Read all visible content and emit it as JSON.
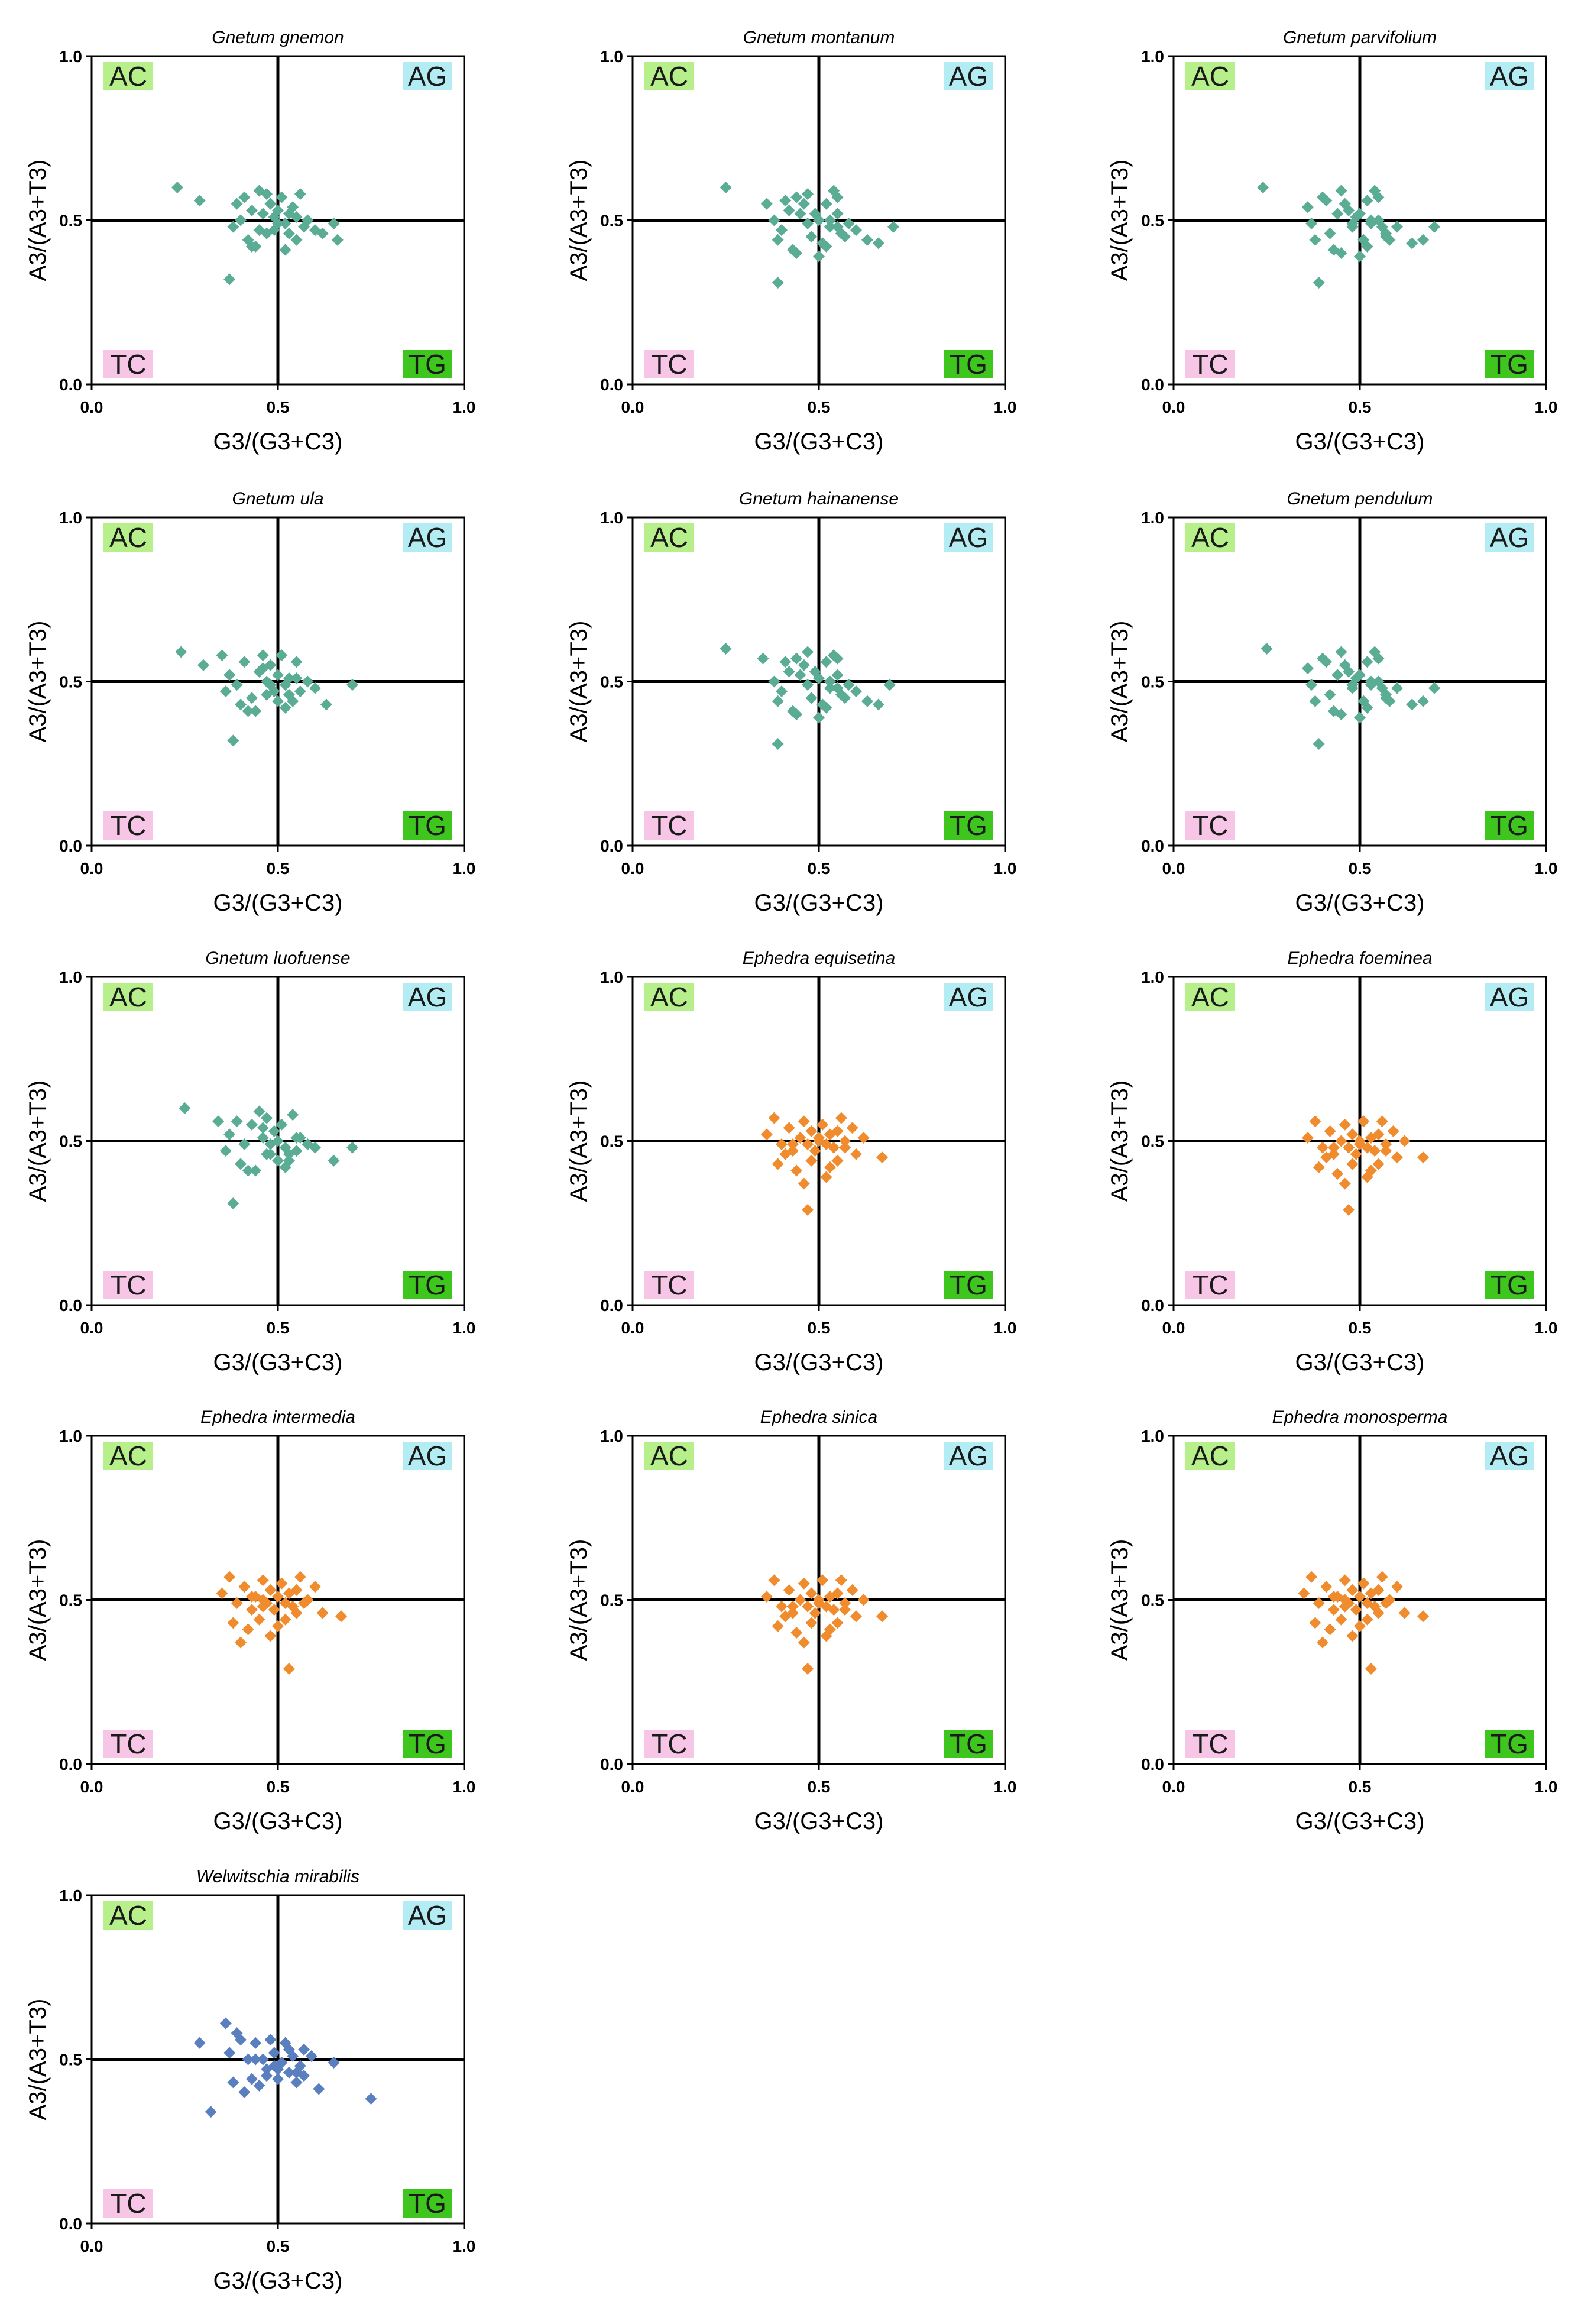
{
  "figure": {
    "colors": {
      "gnetum": "#5aac94",
      "ephedra": "#f08c2e",
      "welwitschia": "#5a7fbf",
      "quad_AC": "#b7ef8a",
      "quad_AG": "#b4ecf4",
      "quad_TC": "#f7c5e6",
      "quad_TG": "#3ec61e"
    }
  },
  "chart_data": [
    {
      "type": "scatter",
      "title": "Gnetum gnemon",
      "color_key": "gnetum",
      "xlabel": "G3/(G3+C3)",
      "ylabel": "A3/(A3+T3)",
      "xlim": [
        0.0,
        1.0
      ],
      "ylim": [
        0.0,
        1.0
      ],
      "xticks": [
        "0.0",
        "0.5",
        "1.0"
      ],
      "yticks": [
        "0.0",
        "0.5",
        "1.0"
      ],
      "quadrants": {
        "AC": "AC",
        "AG": "AG",
        "TC": "TC",
        "TG": "TG"
      },
      "x": [
        0.23,
        0.29,
        0.38,
        0.4,
        0.42,
        0.44,
        0.45,
        0.46,
        0.47,
        0.48,
        0.49,
        0.5,
        0.51,
        0.52,
        0.53,
        0.55,
        0.56,
        0.57,
        0.58,
        0.6,
        0.62,
        0.65,
        0.66,
        0.39,
        0.41,
        0.43,
        0.47,
        0.5,
        0.53,
        0.55,
        0.37,
        0.43,
        0.52,
        0.45,
        0.49,
        0.54
      ],
      "y": [
        0.6,
        0.56,
        0.48,
        0.5,
        0.44,
        0.42,
        0.47,
        0.52,
        0.58,
        0.55,
        0.51,
        0.53,
        0.57,
        0.49,
        0.46,
        0.51,
        0.58,
        0.48,
        0.5,
        0.47,
        0.46,
        0.49,
        0.44,
        0.55,
        0.57,
        0.53,
        0.46,
        0.49,
        0.52,
        0.44,
        0.32,
        0.42,
        0.41,
        0.59,
        0.47,
        0.54
      ]
    },
    {
      "type": "scatter",
      "title": "Gnetum montanum",
      "color_key": "gnetum",
      "xlabel": "G3/(G3+C3)",
      "ylabel": "A3/(A3+T3)",
      "xlim": [
        0.0,
        1.0
      ],
      "ylim": [
        0.0,
        1.0
      ],
      "xticks": [
        "0.0",
        "0.5",
        "1.0"
      ],
      "yticks": [
        "0.0",
        "0.5",
        "1.0"
      ],
      "quadrants": {
        "AC": "AC",
        "AG": "AG",
        "TC": "TC",
        "TG": "TG"
      },
      "x": [
        0.25,
        0.36,
        0.38,
        0.4,
        0.42,
        0.44,
        0.45,
        0.47,
        0.48,
        0.5,
        0.51,
        0.52,
        0.53,
        0.54,
        0.55,
        0.56,
        0.58,
        0.6,
        0.63,
        0.66,
        0.7,
        0.39,
        0.43,
        0.46,
        0.49,
        0.52,
        0.55,
        0.57,
        0.39,
        0.44,
        0.5,
        0.53,
        0.47,
        0.41,
        0.55
      ],
      "y": [
        0.6,
        0.55,
        0.5,
        0.47,
        0.53,
        0.57,
        0.52,
        0.58,
        0.45,
        0.5,
        0.43,
        0.55,
        0.48,
        0.59,
        0.52,
        0.46,
        0.49,
        0.47,
        0.44,
        0.43,
        0.48,
        0.44,
        0.41,
        0.55,
        0.52,
        0.42,
        0.57,
        0.45,
        0.31,
        0.4,
        0.39,
        0.5,
        0.49,
        0.56,
        0.48
      ]
    },
    {
      "type": "scatter",
      "title": "Gnetum parvifolium",
      "color_key": "gnetum",
      "xlabel": "G3/(G3+C3)",
      "ylabel": "A3/(A3+T3)",
      "xlim": [
        0.0,
        1.0
      ],
      "ylim": [
        0.0,
        1.0
      ],
      "xticks": [
        "0.0",
        "0.5",
        "1.0"
      ],
      "yticks": [
        "0.0",
        "0.5",
        "1.0"
      ],
      "quadrants": {
        "AC": "AC",
        "AG": "AG",
        "TC": "TC",
        "TG": "TG"
      },
      "x": [
        0.24,
        0.36,
        0.37,
        0.4,
        0.42,
        0.44,
        0.45,
        0.47,
        0.48,
        0.49,
        0.51,
        0.52,
        0.53,
        0.54,
        0.55,
        0.57,
        0.58,
        0.6,
        0.64,
        0.67,
        0.7,
        0.38,
        0.43,
        0.46,
        0.5,
        0.52,
        0.55,
        0.57,
        0.39,
        0.45,
        0.5,
        0.53,
        0.48,
        0.41,
        0.56
      ],
      "y": [
        0.6,
        0.54,
        0.49,
        0.57,
        0.46,
        0.52,
        0.59,
        0.53,
        0.48,
        0.51,
        0.44,
        0.56,
        0.49,
        0.59,
        0.5,
        0.46,
        0.44,
        0.48,
        0.43,
        0.44,
        0.48,
        0.44,
        0.41,
        0.55,
        0.52,
        0.42,
        0.57,
        0.45,
        0.31,
        0.4,
        0.39,
        0.5,
        0.49,
        0.56,
        0.48
      ]
    },
    {
      "type": "scatter",
      "title": "Gnetum ula",
      "color_key": "gnetum",
      "xlabel": "G3/(G3+C3)",
      "ylabel": "A3/(A3+T3)",
      "xlim": [
        0.0,
        1.0
      ],
      "ylim": [
        0.0,
        1.0
      ],
      "xticks": [
        "0.0",
        "0.5",
        "1.0"
      ],
      "yticks": [
        "0.0",
        "0.5",
        "1.0"
      ],
      "quadrants": {
        "AC": "AC",
        "AG": "AG",
        "TC": "TC",
        "TG": "TG"
      },
      "x": [
        0.24,
        0.3,
        0.35,
        0.37,
        0.39,
        0.41,
        0.43,
        0.45,
        0.46,
        0.47,
        0.48,
        0.49,
        0.5,
        0.51,
        0.52,
        0.53,
        0.54,
        0.55,
        0.56,
        0.58,
        0.6,
        0.63,
        0.7,
        0.36,
        0.4,
        0.44,
        0.47,
        0.5,
        0.53,
        0.42,
        0.46,
        0.52,
        0.38,
        0.48,
        0.55
      ],
      "y": [
        0.59,
        0.55,
        0.58,
        0.52,
        0.49,
        0.56,
        0.45,
        0.53,
        0.58,
        0.5,
        0.55,
        0.47,
        0.52,
        0.58,
        0.49,
        0.51,
        0.44,
        0.56,
        0.47,
        0.5,
        0.48,
        0.43,
        0.49,
        0.47,
        0.43,
        0.41,
        0.46,
        0.44,
        0.46,
        0.41,
        0.54,
        0.42,
        0.32,
        0.49,
        0.51
      ]
    },
    {
      "type": "scatter",
      "title": "Gnetum hainanense",
      "color_key": "gnetum",
      "xlabel": "G3/(G3+C3)",
      "ylabel": "A3/(A3+T3)",
      "xlim": [
        0.0,
        1.0
      ],
      "ylim": [
        0.0,
        1.0
      ],
      "xticks": [
        "0.0",
        "0.5",
        "1.0"
      ],
      "yticks": [
        "0.0",
        "0.5",
        "1.0"
      ],
      "quadrants": {
        "AC": "AC",
        "AG": "AG",
        "TC": "TC",
        "TG": "TG"
      },
      "x": [
        0.25,
        0.35,
        0.38,
        0.4,
        0.42,
        0.44,
        0.45,
        0.47,
        0.48,
        0.5,
        0.51,
        0.52,
        0.53,
        0.54,
        0.55,
        0.56,
        0.58,
        0.6,
        0.63,
        0.66,
        0.69,
        0.39,
        0.43,
        0.46,
        0.49,
        0.52,
        0.55,
        0.57,
        0.39,
        0.44,
        0.5,
        0.53,
        0.47,
        0.41,
        0.55
      ],
      "y": [
        0.6,
        0.57,
        0.5,
        0.47,
        0.53,
        0.57,
        0.52,
        0.59,
        0.45,
        0.51,
        0.43,
        0.56,
        0.48,
        0.58,
        0.52,
        0.46,
        0.49,
        0.47,
        0.44,
        0.43,
        0.49,
        0.44,
        0.41,
        0.55,
        0.53,
        0.42,
        0.57,
        0.45,
        0.31,
        0.4,
        0.39,
        0.5,
        0.49,
        0.56,
        0.48
      ]
    },
    {
      "type": "scatter",
      "title": "Gnetum pendulum",
      "color_key": "gnetum",
      "xlabel": "G3/(G3+C3)",
      "ylabel": "A3/(A3+T3)",
      "xlim": [
        0.0,
        1.0
      ],
      "ylim": [
        0.0,
        1.0
      ],
      "xticks": [
        "0.0",
        "0.5",
        "1.0"
      ],
      "yticks": [
        "0.0",
        "0.5",
        "1.0"
      ],
      "quadrants": {
        "AC": "AC",
        "AG": "AG",
        "TC": "TC",
        "TG": "TG"
      },
      "x": [
        0.25,
        0.36,
        0.37,
        0.4,
        0.42,
        0.44,
        0.45,
        0.47,
        0.48,
        0.49,
        0.51,
        0.52,
        0.53,
        0.54,
        0.55,
        0.57,
        0.58,
        0.6,
        0.64,
        0.67,
        0.7,
        0.38,
        0.43,
        0.46,
        0.5,
        0.52,
        0.55,
        0.57,
        0.39,
        0.45,
        0.5,
        0.53,
        0.48,
        0.41,
        0.56
      ],
      "y": [
        0.6,
        0.54,
        0.49,
        0.57,
        0.46,
        0.52,
        0.59,
        0.53,
        0.48,
        0.51,
        0.44,
        0.56,
        0.49,
        0.59,
        0.5,
        0.46,
        0.44,
        0.48,
        0.43,
        0.44,
        0.48,
        0.44,
        0.41,
        0.55,
        0.52,
        0.42,
        0.57,
        0.45,
        0.31,
        0.4,
        0.39,
        0.5,
        0.49,
        0.56,
        0.48
      ]
    },
    {
      "type": "scatter",
      "title": "Gnetum luofuense",
      "color_key": "gnetum",
      "xlabel": "G3/(G3+C3)",
      "ylabel": "A3/(A3+T3)",
      "xlim": [
        0.0,
        1.0
      ],
      "ylim": [
        0.0,
        1.0
      ],
      "xticks": [
        "0.0",
        "0.5",
        "1.0"
      ],
      "yticks": [
        "0.0",
        "0.5",
        "1.0"
      ],
      "quadrants": {
        "AC": "AC",
        "AG": "AG",
        "TC": "TC",
        "TG": "TG"
      },
      "x": [
        0.25,
        0.34,
        0.37,
        0.39,
        0.41,
        0.43,
        0.45,
        0.46,
        0.47,
        0.48,
        0.49,
        0.5,
        0.51,
        0.52,
        0.53,
        0.54,
        0.55,
        0.56,
        0.58,
        0.6,
        0.65,
        0.7,
        0.36,
        0.4,
        0.44,
        0.47,
        0.5,
        0.53,
        0.42,
        0.46,
        0.52,
        0.38,
        0.48,
        0.55
      ],
      "y": [
        0.6,
        0.56,
        0.52,
        0.56,
        0.49,
        0.55,
        0.59,
        0.51,
        0.57,
        0.46,
        0.53,
        0.5,
        0.55,
        0.48,
        0.44,
        0.58,
        0.47,
        0.51,
        0.49,
        0.48,
        0.44,
        0.48,
        0.47,
        0.43,
        0.41,
        0.46,
        0.44,
        0.46,
        0.41,
        0.54,
        0.42,
        0.31,
        0.49,
        0.51
      ]
    },
    {
      "type": "scatter",
      "title": "Ephedra equisetina",
      "color_key": "ephedra",
      "xlabel": "G3/(G3+C3)",
      "ylabel": "A3/(A3+T3)",
      "xlim": [
        0.0,
        1.0
      ],
      "ylim": [
        0.0,
        1.0
      ],
      "xticks": [
        "0.0",
        "0.5",
        "1.0"
      ],
      "yticks": [
        "0.0",
        "0.5",
        "1.0"
      ],
      "quadrants": {
        "AC": "AC",
        "AG": "AG",
        "TC": "TC",
        "TG": "TG"
      },
      "x": [
        0.36,
        0.38,
        0.4,
        0.42,
        0.43,
        0.45,
        0.46,
        0.47,
        0.48,
        0.49,
        0.5,
        0.51,
        0.52,
        0.53,
        0.54,
        0.55,
        0.56,
        0.57,
        0.59,
        0.6,
        0.62,
        0.67,
        0.39,
        0.44,
        0.48,
        0.52,
        0.55,
        0.41,
        0.46,
        0.5,
        0.53,
        0.47,
        0.57,
        0.43
      ],
      "y": [
        0.52,
        0.57,
        0.49,
        0.54,
        0.47,
        0.51,
        0.56,
        0.49,
        0.53,
        0.47,
        0.51,
        0.55,
        0.49,
        0.52,
        0.48,
        0.53,
        0.57,
        0.5,
        0.54,
        0.46,
        0.51,
        0.45,
        0.43,
        0.41,
        0.44,
        0.39,
        0.44,
        0.46,
        0.37,
        0.5,
        0.42,
        0.29,
        0.48,
        0.49
      ]
    },
    {
      "type": "scatter",
      "title": "Ephedra foeminea",
      "color_key": "ephedra",
      "xlabel": "G3/(G3+C3)",
      "ylabel": "A3/(A3+T3)",
      "xlim": [
        0.0,
        1.0
      ],
      "ylim": [
        0.0,
        1.0
      ],
      "xticks": [
        "0.0",
        "0.5",
        "1.0"
      ],
      "yticks": [
        "0.0",
        "0.5",
        "1.0"
      ],
      "quadrants": {
        "AC": "AC",
        "AG": "AG",
        "TC": "TC",
        "TG": "TG"
      },
      "x": [
        0.36,
        0.38,
        0.4,
        0.42,
        0.43,
        0.45,
        0.46,
        0.47,
        0.48,
        0.49,
        0.5,
        0.51,
        0.52,
        0.53,
        0.54,
        0.55,
        0.56,
        0.57,
        0.59,
        0.6,
        0.62,
        0.67,
        0.39,
        0.44,
        0.48,
        0.52,
        0.55,
        0.41,
        0.46,
        0.5,
        0.53,
        0.47,
        0.57,
        0.43
      ],
      "y": [
        0.51,
        0.56,
        0.48,
        0.53,
        0.46,
        0.5,
        0.55,
        0.48,
        0.52,
        0.46,
        0.5,
        0.56,
        0.48,
        0.51,
        0.47,
        0.52,
        0.56,
        0.49,
        0.53,
        0.45,
        0.5,
        0.45,
        0.42,
        0.4,
        0.43,
        0.39,
        0.43,
        0.45,
        0.37,
        0.49,
        0.41,
        0.29,
        0.47,
        0.48
      ]
    },
    {
      "type": "scatter",
      "title": "Ephedra intermedia",
      "color_key": "ephedra",
      "xlabel": "G3/(G3+C3)",
      "ylabel": "A3/(A3+T3)",
      "xlim": [
        0.0,
        1.0
      ],
      "ylim": [
        0.0,
        1.0
      ],
      "xticks": [
        "0.0",
        "0.5",
        "1.0"
      ],
      "yticks": [
        "0.0",
        "0.5",
        "1.0"
      ],
      "quadrants": {
        "AC": "AC",
        "AG": "AG",
        "TC": "TC",
        "TG": "TG"
      },
      "x": [
        0.35,
        0.37,
        0.39,
        0.41,
        0.43,
        0.44,
        0.46,
        0.47,
        0.48,
        0.49,
        0.5,
        0.51,
        0.52,
        0.53,
        0.54,
        0.55,
        0.56,
        0.58,
        0.6,
        0.62,
        0.67,
        0.38,
        0.42,
        0.45,
        0.48,
        0.52,
        0.55,
        0.4,
        0.46,
        0.5,
        0.53,
        0.46,
        0.57,
        0.43
      ],
      "y": [
        0.52,
        0.57,
        0.49,
        0.54,
        0.47,
        0.51,
        0.56,
        0.49,
        0.53,
        0.47,
        0.51,
        0.55,
        0.49,
        0.52,
        0.48,
        0.53,
        0.57,
        0.5,
        0.54,
        0.46,
        0.45,
        0.43,
        0.41,
        0.44,
        0.39,
        0.44,
        0.46,
        0.37,
        0.5,
        0.42,
        0.29,
        0.48,
        0.49,
        0.51
      ]
    },
    {
      "type": "scatter",
      "title": "Ephedra sinica",
      "color_key": "ephedra",
      "xlabel": "G3/(G3+C3)",
      "ylabel": "A3/(A3+T3)",
      "xlim": [
        0.0,
        1.0
      ],
      "ylim": [
        0.0,
        1.0
      ],
      "xticks": [
        "0.0",
        "0.5",
        "1.0"
      ],
      "yticks": [
        "0.0",
        "0.5",
        "1.0"
      ],
      "quadrants": {
        "AC": "AC",
        "AG": "AG",
        "TC": "TC",
        "TG": "TG"
      },
      "x": [
        0.36,
        0.38,
        0.4,
        0.42,
        0.43,
        0.45,
        0.46,
        0.47,
        0.48,
        0.49,
        0.5,
        0.51,
        0.52,
        0.53,
        0.54,
        0.55,
        0.56,
        0.57,
        0.59,
        0.6,
        0.62,
        0.67,
        0.39,
        0.44,
        0.48,
        0.52,
        0.55,
        0.41,
        0.46,
        0.5,
        0.53,
        0.47,
        0.57,
        0.43
      ],
      "y": [
        0.51,
        0.56,
        0.48,
        0.53,
        0.46,
        0.5,
        0.55,
        0.48,
        0.52,
        0.46,
        0.5,
        0.56,
        0.48,
        0.51,
        0.47,
        0.52,
        0.56,
        0.49,
        0.53,
        0.45,
        0.5,
        0.45,
        0.42,
        0.4,
        0.43,
        0.39,
        0.43,
        0.45,
        0.37,
        0.49,
        0.41,
        0.29,
        0.47,
        0.48
      ]
    },
    {
      "type": "scatter",
      "title": "Ephedra monosperma",
      "color_key": "ephedra",
      "xlabel": "G3/(G3+C3)",
      "ylabel": "A3/(A3+T3)",
      "xlim": [
        0.0,
        1.0
      ],
      "ylim": [
        0.0,
        1.0
      ],
      "xticks": [
        "0.0",
        "0.5",
        "1.0"
      ],
      "yticks": [
        "0.0",
        "0.5",
        "1.0"
      ],
      "quadrants": {
        "AC": "AC",
        "AG": "AG",
        "TC": "TC",
        "TG": "TG"
      },
      "x": [
        0.35,
        0.37,
        0.39,
        0.41,
        0.43,
        0.44,
        0.46,
        0.47,
        0.48,
        0.49,
        0.5,
        0.51,
        0.52,
        0.53,
        0.54,
        0.55,
        0.56,
        0.58,
        0.6,
        0.62,
        0.67,
        0.38,
        0.42,
        0.45,
        0.48,
        0.52,
        0.55,
        0.4,
        0.46,
        0.5,
        0.53,
        0.46,
        0.57,
        0.43
      ],
      "y": [
        0.52,
        0.57,
        0.49,
        0.54,
        0.47,
        0.51,
        0.56,
        0.49,
        0.53,
        0.47,
        0.51,
        0.55,
        0.49,
        0.52,
        0.48,
        0.53,
        0.57,
        0.5,
        0.54,
        0.46,
        0.45,
        0.43,
        0.41,
        0.44,
        0.39,
        0.44,
        0.46,
        0.37,
        0.5,
        0.42,
        0.29,
        0.48,
        0.49,
        0.51
      ]
    },
    {
      "type": "scatter",
      "title": "Welwitschia mirabilis",
      "color_key": "welwitschia",
      "xlabel": "G3/(G3+C3)",
      "ylabel": "A3/(A3+T3)",
      "xlim": [
        0.0,
        1.0
      ],
      "ylim": [
        0.0,
        1.0
      ],
      "xticks": [
        "0.0",
        "0.5",
        "1.0"
      ],
      "yticks": [
        "0.0",
        "0.5",
        "1.0"
      ],
      "quadrants": {
        "AC": "AC",
        "AG": "AG",
        "TC": "TC",
        "TG": "TG"
      },
      "x": [
        0.29,
        0.32,
        0.36,
        0.37,
        0.38,
        0.4,
        0.41,
        0.43,
        0.44,
        0.45,
        0.46,
        0.47,
        0.48,
        0.49,
        0.5,
        0.51,
        0.52,
        0.53,
        0.54,
        0.55,
        0.56,
        0.57,
        0.59,
        0.61,
        0.65,
        0.75,
        0.39,
        0.42,
        0.47,
        0.5,
        0.53,
        0.57,
        0.44,
        0.49,
        0.55
      ],
      "y": [
        0.55,
        0.34,
        0.61,
        0.52,
        0.43,
        0.56,
        0.4,
        0.44,
        0.55,
        0.42,
        0.5,
        0.47,
        0.56,
        0.52,
        0.44,
        0.49,
        0.55,
        0.46,
        0.51,
        0.43,
        0.48,
        0.53,
        0.51,
        0.41,
        0.49,
        0.38,
        0.58,
        0.5,
        0.45,
        0.47,
        0.53,
        0.45,
        0.5,
        0.48,
        0.46
      ]
    }
  ]
}
